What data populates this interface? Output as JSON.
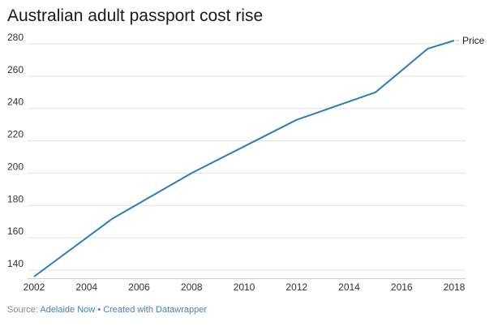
{
  "colors": {
    "line": "#2f7db8",
    "grid": "#e2e2e2",
    "text": "#333333"
  },
  "chart_data": {
    "type": "line",
    "title": "Australian adult passport cost rise",
    "xlabel": "",
    "ylabel": "",
    "xlim": [
      2002,
      2018
    ],
    "ylim": [
      135,
      285
    ],
    "xticks": [
      2002,
      2004,
      2006,
      2008,
      2010,
      2012,
      2014,
      2016,
      2018
    ],
    "yticks": [
      140,
      160,
      180,
      200,
      220,
      240,
      260,
      280
    ],
    "series": [
      {
        "name": "Price",
        "x": [
          2002,
          2005,
          2008,
          2012,
          2015,
          2017,
          2018
        ],
        "y": [
          136,
          172,
          200,
          233,
          250,
          277,
          282
        ]
      }
    ]
  },
  "footer": {
    "prefix": "Source: ",
    "source": "Adelaide Now",
    "separator": " • ",
    "credit": "Created with Datawrapper"
  }
}
